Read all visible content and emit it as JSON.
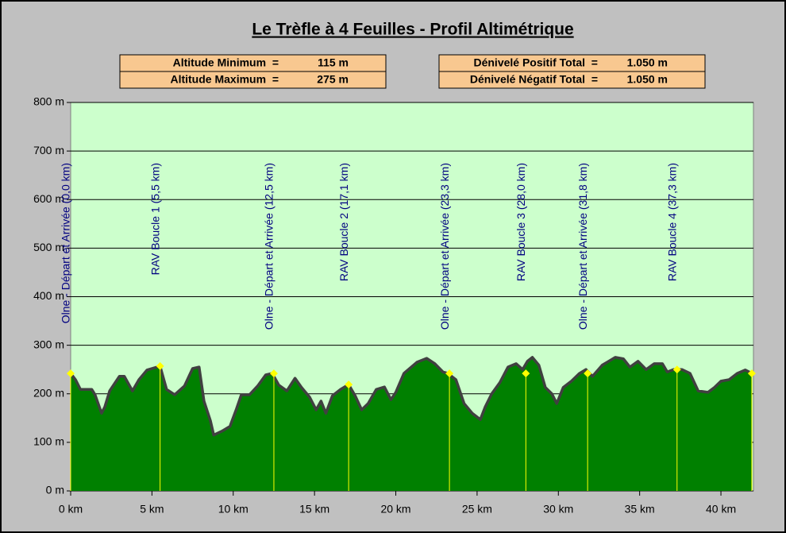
{
  "chart_data": {
    "type": "area",
    "title": "Le Trèfle à 4 Feuilles - Profil Altimétrique",
    "stats": [
      [
        {
          "label": "Altitude Minimum  =",
          "value": "115 m"
        },
        {
          "label": "Altitude Maximum  =",
          "value": "275 m"
        }
      ],
      [
        {
          "label": "Dénivelé Positif Total  =",
          "value": "1.050 m"
        },
        {
          "label": "Dénivelé Négatif Total  =",
          "value": "1.050 m"
        }
      ]
    ],
    "x": [
      0,
      0.3,
      0.6,
      1.3,
      1.5,
      1.9,
      2.1,
      2.4,
      3.0,
      3.3,
      3.8,
      4.2,
      4.7,
      5.2,
      5.5,
      5.9,
      6.4,
      7.0,
      7.5,
      7.9,
      8.2,
      8.6,
      8.8,
      9.3,
      9.8,
      10.2,
      10.5,
      11.0,
      11.5,
      12.0,
      12.4,
      12.8,
      13.3,
      13.8,
      14.2,
      14.7,
      15.1,
      15.4,
      15.7,
      16.1,
      16.6,
      17.1,
      17.5,
      17.9,
      18.3,
      18.8,
      19.3,
      19.7,
      20.0,
      20.5,
      21.3,
      21.9,
      22.4,
      22.9,
      23.2,
      23.7,
      24.2,
      24.7,
      25.2,
      25.5,
      25.9,
      26.4,
      26.9,
      27.4,
      27.8,
      28.1,
      28.4,
      28.8,
      29.2,
      29.6,
      29.9,
      30.3,
      30.8,
      31.3,
      31.7,
      32.1,
      32.7,
      33.5,
      34.0,
      34.4,
      34.9,
      35.4,
      35.9,
      36.4,
      36.7,
      37.1,
      37.6,
      38.1,
      38.6,
      39.2,
      39.6,
      40.0,
      40.5,
      41.0,
      41.5,
      41.9
    ],
    "values": [
      242,
      229,
      209,
      209,
      198,
      160,
      173,
      206,
      236,
      236,
      206,
      229,
      249,
      254,
      257,
      209,
      198,
      216,
      252,
      255,
      185,
      144,
      115,
      123,
      133,
      169,
      198,
      198,
      216,
      239,
      242,
      218,
      206,
      232,
      213,
      193,
      167,
      185,
      160,
      196,
      209,
      219,
      196,
      167,
      180,
      209,
      214,
      188,
      203,
      242,
      265,
      273,
      262,
      245,
      242,
      229,
      180,
      160,
      147,
      173,
      200,
      223,
      255,
      262,
      250,
      267,
      275,
      259,
      213,
      200,
      180,
      213,
      226,
      242,
      250,
      236,
      259,
      275,
      272,
      255,
      267,
      250,
      262,
      262,
      245,
      250,
      250,
      242,
      206,
      203,
      213,
      226,
      229,
      242,
      249,
      242
    ],
    "fill_color": "#008000",
    "line_color": "#404040",
    "plot_background": "#ccffcc",
    "waypoints": {
      "x": [
        0.0,
        5.5,
        12.5,
        17.1,
        23.3,
        28.0,
        31.8,
        37.3,
        41.9
      ],
      "values": [
        242,
        257,
        242,
        219,
        242,
        242,
        242,
        250,
        242
      ],
      "labels": [
        "Olne - Départ et Arrivée (0,0 km)",
        "RAV Boucle 1 (5,5 km)",
        "Olne - Départ et Arrivée (12,5 km)",
        "RAV Boucle 2 (17,1 km)",
        "Olne - Départ et Arrivée (23,3 km)",
        "RAV Boucle 3 (28,0 km)",
        "Olne - Départ et Arrivée (31,8 km)",
        "RAV Boucle 4 (37,3 km)",
        null
      ],
      "color": "#ffff00",
      "label_color": "#000080"
    },
    "xlim": [
      0,
      42
    ],
    "ylim": [
      0,
      800
    ],
    "xticks": [
      {
        "value": 0,
        "label": "0 km"
      },
      {
        "value": 5,
        "label": "5 km"
      },
      {
        "value": 10,
        "label": "10 km"
      },
      {
        "value": 15,
        "label": "15 km"
      },
      {
        "value": 20,
        "label": "20 km"
      },
      {
        "value": 25,
        "label": "25 km"
      },
      {
        "value": 30,
        "label": "30 km"
      },
      {
        "value": 35,
        "label": "35 km"
      },
      {
        "value": 40,
        "label": "40 km"
      }
    ],
    "yticks": [
      {
        "value": 0,
        "label": "0 m"
      },
      {
        "value": 100,
        "label": "100 m"
      },
      {
        "value": 200,
        "label": "200 m"
      },
      {
        "value": 300,
        "label": "300 m"
      },
      {
        "value": 400,
        "label": "400 m"
      },
      {
        "value": 500,
        "label": "500 m"
      },
      {
        "value": 600,
        "label": "600 m"
      },
      {
        "value": 700,
        "label": "700 m"
      },
      {
        "value": 800,
        "label": "800 m"
      }
    ],
    "grid": true
  }
}
